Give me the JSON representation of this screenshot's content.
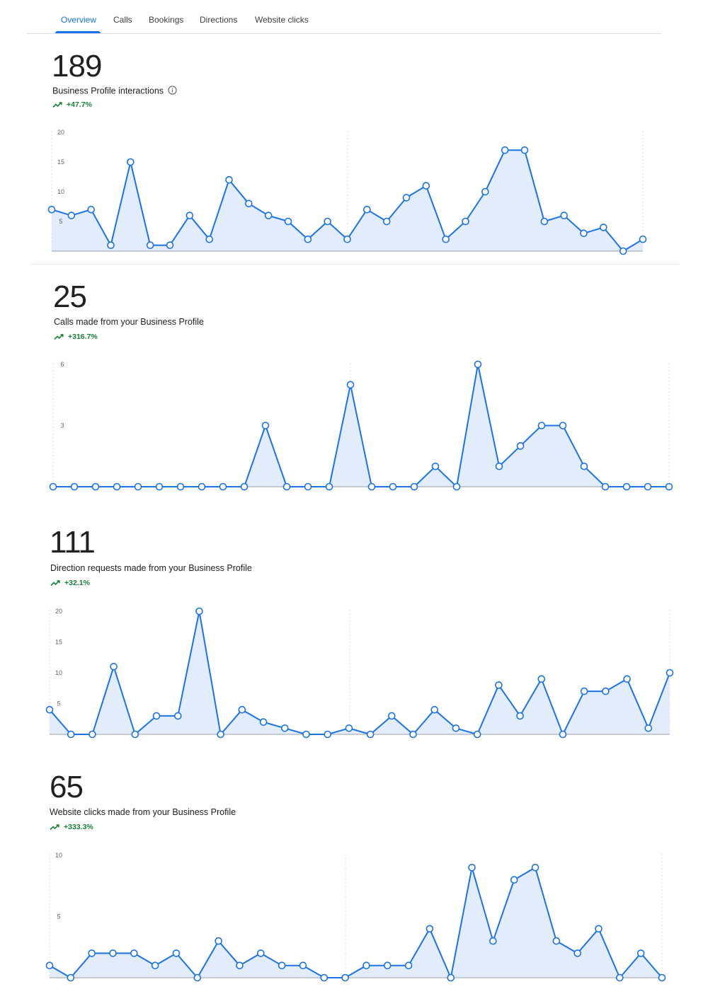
{
  "tabs": [
    {
      "label": "Overview",
      "active": true
    },
    {
      "label": "Calls",
      "active": false
    },
    {
      "label": "Bookings",
      "active": false
    },
    {
      "label": "Directions",
      "active": false
    },
    {
      "label": "Website clicks",
      "active": false
    }
  ],
  "colors": {
    "accent": "#1a73e8",
    "fill": "#e3ecfb",
    "positive": "#188038"
  },
  "metrics": [
    {
      "value": "189",
      "label": "Business Profile interactions",
      "change": "+47.7%",
      "icon": "info-icon"
    },
    {
      "value": "25",
      "label": "Calls made from your Business Profile",
      "change": "+316.7%"
    },
    {
      "value": "111",
      "label": "Direction requests made from your Business Profile",
      "change": "+32.1%"
    },
    {
      "value": "65",
      "label": "Website clicks made from your Business Profile",
      "change": "+333.3%"
    }
  ],
  "chart_data": [
    {
      "type": "area",
      "title": "",
      "xlabel": "",
      "ylabel": "",
      "ylim": [
        0,
        20
      ],
      "yticks": [
        "20",
        "15",
        "10",
        "5"
      ],
      "grid": "vertical dashed at midpoint and end",
      "values": [
        7,
        6,
        7,
        1,
        15,
        1,
        1,
        6,
        2,
        12,
        8,
        6,
        5,
        2,
        5,
        2,
        7,
        5,
        9,
        11,
        2,
        5,
        10,
        17,
        17,
        5,
        6,
        3,
        4,
        0,
        2
      ]
    },
    {
      "type": "area",
      "title": "",
      "xlabel": "",
      "ylabel": "",
      "ylim": [
        0,
        6
      ],
      "yticks": [
        "6",
        "3"
      ],
      "grid": "vertical dashed at midpoint and end",
      "values": [
        0,
        0,
        0,
        0,
        0,
        0,
        0,
        0,
        0,
        0,
        3,
        0,
        0,
        0,
        5,
        0,
        0,
        0,
        1,
        0,
        6,
        1,
        2,
        3,
        3,
        1,
        0,
        0,
        0,
        0
      ]
    },
    {
      "type": "area",
      "title": "",
      "xlabel": "",
      "ylabel": "",
      "ylim": [
        0,
        20
      ],
      "yticks": [
        "20",
        "15",
        "10",
        "5"
      ],
      "grid": "vertical dashed at midpoint and end",
      "values": [
        4,
        0,
        0,
        11,
        0,
        3,
        3,
        20,
        0,
        4,
        2,
        1,
        0,
        0,
        1,
        0,
        3,
        0,
        4,
        1,
        0,
        8,
        3,
        9,
        0,
        7,
        7,
        9,
        1,
        10
      ]
    },
    {
      "type": "area",
      "title": "",
      "xlabel": "",
      "ylabel": "",
      "ylim": [
        0,
        10
      ],
      "yticks": [
        "10",
        "5"
      ],
      "grid": "vertical dashed at midpoint and end",
      "values": [
        1,
        0,
        2,
        2,
        2,
        1,
        2,
        0,
        3,
        1,
        2,
        1,
        1,
        0,
        0,
        1,
        1,
        1,
        4,
        0,
        9,
        3,
        8,
        9,
        3,
        2,
        4,
        0,
        2,
        0
      ]
    }
  ]
}
